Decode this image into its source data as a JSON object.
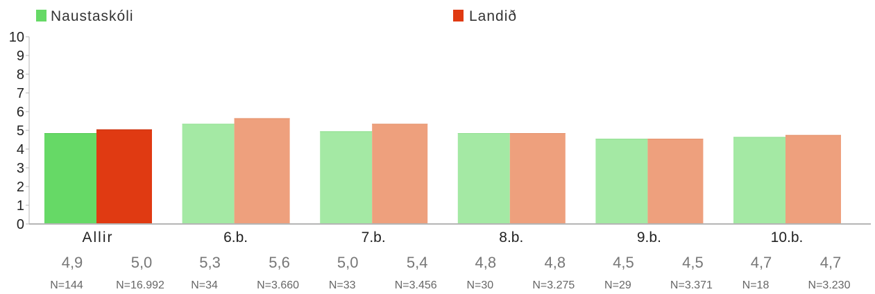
{
  "chart_data": {
    "type": "bar",
    "categories": [
      "Allir",
      "6.b.",
      "7.b.",
      "8.b.",
      "9.b.",
      "10.b."
    ],
    "series": [
      {
        "name": "Naustaskóli",
        "color": "#66d966",
        "faded_color": "#a4e9a4",
        "values": [
          4.85,
          5.35,
          4.95,
          4.85,
          4.55,
          4.65
        ],
        "value_labels": [
          "4,9",
          "5,3",
          "5,0",
          "4,8",
          "4,5",
          "4,7"
        ],
        "n_labels": [
          "N=144",
          "N=34",
          "N=33",
          "N=30",
          "N=29",
          "N=18"
        ]
      },
      {
        "name": "Landið",
        "color": "#e03a12",
        "faded_color": "#eea07d",
        "values": [
          5.05,
          5.65,
          5.35,
          4.85,
          4.55,
          4.75
        ],
        "value_labels": [
          "5,0",
          "5,6",
          "5,4",
          "4,8",
          "4,5",
          "4,7"
        ],
        "n_labels": [
          "N=16.992",
          "N=3.660",
          "N=3.456",
          "N=3.275",
          "N=3.371",
          "N=3.230"
        ]
      }
    ],
    "highlighted_category": "Allir",
    "ylim": [
      0,
      10
    ],
    "yticks": [
      "0",
      "1",
      "2",
      "3",
      "4",
      "5",
      "6",
      "7",
      "8",
      "9",
      "10"
    ],
    "grid": false,
    "legend_position": "top"
  }
}
